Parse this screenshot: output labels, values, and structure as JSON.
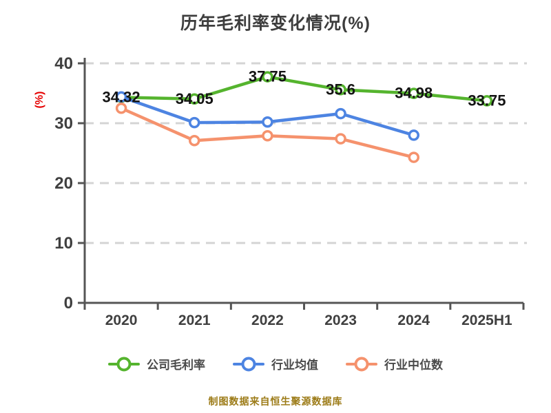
{
  "chart_data": {
    "type": "line",
    "title": "历年毛利率变化情况(%)",
    "ylabel": "(%)",
    "ylim": [
      0,
      40
    ],
    "yticks": [
      0,
      10,
      20,
      30,
      40
    ],
    "grid": "horizontal-dashed",
    "legend_position": "bottom",
    "categories": [
      "2020",
      "2021",
      "2022",
      "2023",
      "2024",
      "2025H1"
    ],
    "series": [
      {
        "name": "公司毛利率",
        "color": "#55b42e",
        "values": [
          34.32,
          34.05,
          37.75,
          35.6,
          34.98,
          33.75
        ],
        "point_labels": [
          "34.32",
          "34.05",
          "37.75",
          "35.6",
          "34.98",
          "33.75"
        ]
      },
      {
        "name": "行业均值",
        "color": "#4d84e2",
        "values": [
          34.4,
          30.1,
          30.2,
          31.6,
          28.0,
          null
        ]
      },
      {
        "name": "行业中位数",
        "color": "#f5926d",
        "values": [
          32.5,
          27.1,
          27.9,
          27.4,
          24.3,
          null
        ]
      }
    ],
    "z_order": [
      0,
      2,
      1
    ],
    "annotations": {
      "source_note": "制图数据来自恒生聚源数据库"
    },
    "colors": {
      "background": "#ffffff",
      "grid": "#d4d4d4",
      "axis": "#555555",
      "tick_text": "#3f3f3f",
      "data_label": "#141414",
      "title": "#3d3d3d",
      "unit_label": "#e60000",
      "source_note": "#9c7b17",
      "legend_text": "#4a4a4a"
    }
  }
}
